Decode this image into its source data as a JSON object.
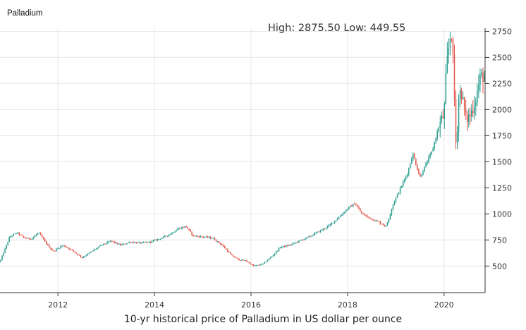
{
  "chart_data": {
    "type": "candlestick",
    "title": "Palladium",
    "annotation": "High: 2875.50 Low: 449.55",
    "high": 2875.5,
    "low": 449.55,
    "caption": "10-yr historical price of Palladium in US dollar per ounce",
    "xlabel": "",
    "ylabel": "",
    "x_range": [
      2010.8,
      2020.85
    ],
    "ylim": [
      245,
      2780
    ],
    "x_ticks": [
      2012,
      2014,
      2016,
      2018,
      2020
    ],
    "x_tick_labels": [
      "2012",
      "2014",
      "2016",
      "2018",
      "2020"
    ],
    "y_ticks": [
      500,
      750,
      1000,
      1250,
      1500,
      1750,
      2000,
      2250,
      2500,
      2750
    ],
    "y_tick_labels": [
      "500",
      "750",
      "1000",
      "1250",
      "1500",
      "1750",
      "2000",
      "2250",
      "2500",
      "2750"
    ],
    "y_axis_side": "right",
    "grid": true,
    "colors": {
      "up": "#2a9d8f",
      "down": "#e4574c",
      "grid": "#e6e6e6",
      "axis": "#333333"
    },
    "price_path": {
      "description": "approximate monthly closes read from the chart",
      "x": [
        2010.8,
        2011.0,
        2011.15,
        2011.3,
        2011.45,
        2011.6,
        2011.75,
        2011.9,
        2012.1,
        2012.3,
        2012.5,
        2012.7,
        2012.9,
        2013.1,
        2013.3,
        2013.5,
        2013.7,
        2013.9,
        2014.1,
        2014.3,
        2014.5,
        2014.65,
        2014.8,
        2015.0,
        2015.2,
        2015.4,
        2015.6,
        2015.75,
        2015.9,
        2016.05,
        2016.25,
        2016.45,
        2016.6,
        2016.8,
        2017.0,
        2017.2,
        2017.4,
        2017.6,
        2017.8,
        2018.0,
        2018.15,
        2018.3,
        2018.5,
        2018.65,
        2018.8,
        2018.95,
        2019.1,
        2019.25,
        2019.35,
        2019.5,
        2019.6,
        2019.75,
        2019.9,
        2020.0,
        2020.05,
        2020.1,
        2020.15,
        2020.2,
        2020.25,
        2020.3,
        2020.35,
        2020.45,
        2020.55,
        2020.65,
        2020.75,
        2020.85
      ],
      "y": [
        540,
        780,
        820,
        770,
        760,
        820,
        720,
        640,
        700,
        650,
        580,
        640,
        700,
        740,
        700,
        730,
        720,
        730,
        760,
        800,
        860,
        880,
        790,
        780,
        770,
        700,
        600,
        560,
        550,
        500,
        520,
        600,
        680,
        700,
        740,
        780,
        830,
        880,
        960,
        1050,
        1100,
        1000,
        950,
        920,
        880,
        1100,
        1250,
        1400,
        1580,
        1350,
        1450,
        1600,
        1850,
        1950,
        2400,
        2600,
        2800,
        2300,
        1600,
        2100,
        2200,
        1900,
        1950,
        2100,
        2300,
        2350
      ]
    }
  }
}
